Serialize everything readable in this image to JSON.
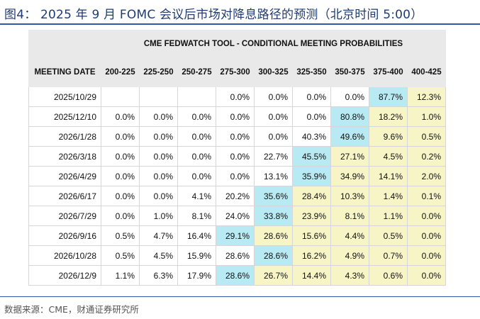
{
  "figure": {
    "title": "图4：  2025 年 9 月 FOMC 会议后市场对降息路径的预测（北京时间 5:00）",
    "source": "数据来源：CME，财通证券研究所"
  },
  "table": {
    "tool_title": "CME FEDWATCH TOOL - CONDITIONAL MEETING PROBABILITIES",
    "date_header": "MEETING DATE",
    "columns": [
      "200-225",
      "225-250",
      "250-275",
      "275-300",
      "300-325",
      "325-350",
      "350-375",
      "375-400",
      "400-425"
    ],
    "rows": [
      {
        "date": "2025/10/29",
        "values": [
          "",
          "",
          "",
          "0.0%",
          "0.0%",
          "0.0%",
          "0.0%",
          "87.7%",
          "12.3%"
        ],
        "hl": [
          0,
          0,
          0,
          0,
          0,
          0,
          0,
          1,
          2
        ]
      },
      {
        "date": "2025/12/10",
        "values": [
          "0.0%",
          "0.0%",
          "0.0%",
          "0.0%",
          "0.0%",
          "0.0%",
          "80.8%",
          "18.2%",
          "1.0%"
        ],
        "hl": [
          0,
          0,
          0,
          0,
          0,
          0,
          1,
          2,
          2
        ]
      },
      {
        "date": "2026/1/28",
        "values": [
          "0.0%",
          "0.0%",
          "0.0%",
          "0.0%",
          "0.0%",
          "40.3%",
          "49.6%",
          "9.6%",
          "0.5%"
        ],
        "hl": [
          0,
          0,
          0,
          0,
          0,
          0,
          1,
          2,
          2
        ]
      },
      {
        "date": "2026/3/18",
        "values": [
          "0.0%",
          "0.0%",
          "0.0%",
          "0.0%",
          "22.7%",
          "45.5%",
          "27.1%",
          "4.5%",
          "0.2%"
        ],
        "hl": [
          0,
          0,
          0,
          0,
          0,
          1,
          2,
          2,
          2
        ]
      },
      {
        "date": "2026/4/29",
        "values": [
          "0.0%",
          "0.0%",
          "0.0%",
          "0.0%",
          "13.1%",
          "35.9%",
          "34.9%",
          "14.1%",
          "2.0%"
        ],
        "hl": [
          0,
          0,
          0,
          0,
          0,
          1,
          2,
          2,
          2
        ]
      },
      {
        "date": "2026/6/17",
        "values": [
          "0.0%",
          "0.0%",
          "4.1%",
          "20.2%",
          "35.6%",
          "28.4%",
          "10.3%",
          "1.4%",
          "0.1%"
        ],
        "hl": [
          0,
          0,
          0,
          0,
          1,
          2,
          2,
          2,
          2
        ]
      },
      {
        "date": "2026/7/29",
        "values": [
          "0.0%",
          "1.0%",
          "8.1%",
          "24.0%",
          "33.8%",
          "23.9%",
          "8.1%",
          "1.1%",
          "0.0%"
        ],
        "hl": [
          0,
          0,
          0,
          0,
          1,
          2,
          2,
          2,
          2
        ]
      },
      {
        "date": "2026/9/16",
        "values": [
          "0.5%",
          "4.7%",
          "16.4%",
          "29.1%",
          "28.6%",
          "15.6%",
          "4.4%",
          "0.5%",
          "0.0%"
        ],
        "hl": [
          0,
          0,
          0,
          1,
          2,
          2,
          2,
          2,
          2
        ]
      },
      {
        "date": "2026/10/28",
        "values": [
          "0.5%",
          "4.5%",
          "15.9%",
          "28.6%",
          "28.6%",
          "16.2%",
          "4.9%",
          "0.7%",
          "0.0%"
        ],
        "hl": [
          0,
          0,
          0,
          0,
          1,
          2,
          2,
          2,
          2
        ]
      },
      {
        "date": "2026/12/9",
        "values": [
          "1.1%",
          "6.3%",
          "17.9%",
          "28.6%",
          "26.7%",
          "14.4%",
          "4.3%",
          "0.6%",
          "0.0%"
        ],
        "hl": [
          0,
          0,
          0,
          1,
          2,
          2,
          2,
          2,
          2
        ]
      }
    ],
    "colors": {
      "highlight_max": "#b8eaf4",
      "highlight_above": "#f7f5c6",
      "header_bg": "#e9e9e9"
    }
  }
}
